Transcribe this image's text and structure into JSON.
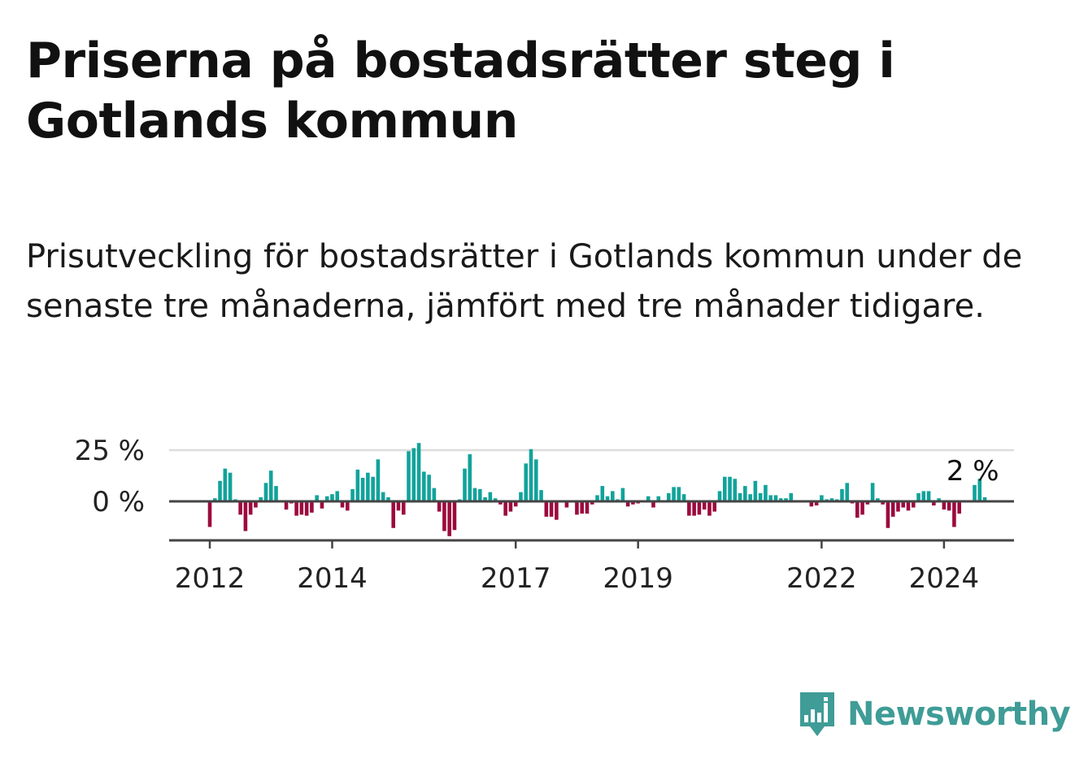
{
  "title": "Priserna på bostadsrätter steg i Gotlands kommun",
  "subtitle": "Prisutveckling för bostadsrätter i Gotlands kommun under de senaste tre månaderna, jämfört med tre månader tidigare.",
  "brand": {
    "name": "Newsworthy",
    "icon": "newsworthy-logo-icon",
    "color": "#3f9c96"
  },
  "colors": {
    "positive": "#11a39b",
    "negative": "#9c0a3e",
    "zero_line": "#444444",
    "grid": "#dddddd",
    "axis": "#444444"
  },
  "chart_data": {
    "type": "bar",
    "title": "Priserna på bostadsrätter steg i Gotlands kommun",
    "subtitle": "Prisutveckling för bostadsrätter i Gotlands kommun under de senaste tre månaderna, jämfört med tre månader tidigare.",
    "y_unit": "%",
    "ylim": [
      -19,
      30
    ],
    "yticks": [
      {
        "value": 0,
        "label": "0 %"
      },
      {
        "value": 25,
        "label": "25 %"
      }
    ],
    "xticks": [
      {
        "date": "2012-01",
        "label": "2012"
      },
      {
        "date": "2014-01",
        "label": "2014"
      },
      {
        "date": "2017-01",
        "label": "2017"
      },
      {
        "date": "2019-01",
        "label": "2019"
      },
      {
        "date": "2022-01",
        "label": "2022"
      },
      {
        "date": "2024-01",
        "label": "2024"
      }
    ],
    "grid": true,
    "annotation": {
      "label": "2 %",
      "date": "2024-06"
    },
    "x_start": "2012-01",
    "values": [
      -12.5,
      1.5,
      10,
      16,
      14,
      1,
      -6.5,
      -14.5,
      -6.5,
      -3,
      2,
      9,
      15,
      7.5,
      0.5,
      -4,
      -1,
      -7,
      -6.5,
      -7,
      -5.5,
      3,
      -3.5,
      2.5,
      3.5,
      5,
      -3,
      -4.5,
      6,
      15.5,
      11.5,
      14,
      12,
      20.5,
      4.5,
      2,
      -13,
      -4.5,
      -6.5,
      24.5,
      26,
      28.5,
      14.5,
      13,
      6.5,
      -5,
      -14.5,
      -17,
      -14,
      1,
      16,
      23,
      6.5,
      6,
      2,
      4.5,
      1.5,
      -1.5,
      -7,
      -5,
      -2.5,
      4.5,
      18.5,
      25.5,
      20.5,
      5.5,
      -7.5,
      -7.5,
      -9,
      0.5,
      -3,
      0.5,
      -6.5,
      -6,
      -6,
      -1.5,
      3,
      7.5,
      2.5,
      5,
      1,
      6.5,
      -2.5,
      -1.5,
      -1,
      0.5,
      2.5,
      -3,
      2.5,
      0.5,
      4,
      7,
      7,
      3.5,
      -7,
      -7,
      -6.5,
      -4,
      -7,
      -5,
      5,
      12,
      12,
      11,
      4,
      7.5,
      3.5,
      10,
      4,
      8,
      3,
      3,
      1.5,
      1.5,
      4,
      0.5,
      0.5,
      0.5,
      -2.5,
      -2,
      3,
      1,
      1.5,
      1,
      6,
      9,
      -1,
      -8,
      -6.5,
      -1.5,
      9,
      1.5,
      -1.5,
      -13,
      -7.5,
      -5,
      -3,
      -4.5,
      -3,
      4,
      5,
      5,
      -2,
      1.5,
      -4,
      -4.5,
      -12.5,
      -6,
      -0.5,
      0.5,
      8,
      11,
      2
    ]
  }
}
